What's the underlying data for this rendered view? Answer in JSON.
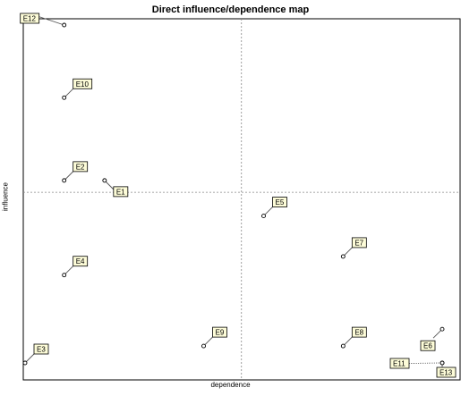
{
  "chart_data": {
    "type": "scatter",
    "title": "Direct influence/dependence map",
    "xlabel": "dependence",
    "ylabel": "influence",
    "grid": false,
    "points": [
      {
        "label": "E12",
        "x": 1.5,
        "y": 10.0,
        "lx": -3,
        "ly": 1
      },
      {
        "label": "E10",
        "x": 1.5,
        "y": 7.85,
        "lx": 1,
        "ly": 1
      },
      {
        "label": "E2",
        "x": 1.5,
        "y": 5.4,
        "lx": 1,
        "ly": 1
      },
      {
        "label": "E1",
        "x": 3.05,
        "y": 5.4,
        "lx": 1,
        "ly": -1
      },
      {
        "label": "E4",
        "x": 1.5,
        "y": 2.6,
        "lx": 1,
        "ly": 1
      },
      {
        "label": "E3",
        "x": 0.0,
        "y": 0.0,
        "lx": 1,
        "ly": 1
      },
      {
        "label": "E9",
        "x": 6.85,
        "y": 0.5,
        "lx": 1,
        "ly": 1
      },
      {
        "label": "E5",
        "x": 9.15,
        "y": 4.35,
        "lx": 1,
        "ly": 1
      },
      {
        "label": "E7",
        "x": 12.2,
        "y": 3.15,
        "lx": 1,
        "ly": 1
      },
      {
        "label": "E8",
        "x": 12.2,
        "y": 0.5,
        "lx": 1,
        "ly": 1
      },
      {
        "label": "E6",
        "x": 16.0,
        "y": 1.0,
        "lx": -1,
        "ly": -1
      },
      {
        "label": "E11",
        "x": 16.0,
        "y": 0.0,
        "lx": -2,
        "ly": 0
      },
      {
        "label": "E13",
        "x": 16.0,
        "y": 0.0,
        "lx": 0,
        "ly": -1
      }
    ],
    "xlim": [
      0,
      16.6
    ],
    "ylim": [
      0,
      10.2
    ],
    "x_divider": 8.3,
    "y_divider": 5.05,
    "colors": {
      "label_fill": "#fdfcd8",
      "label_border": "#000000",
      "marker": "#000000",
      "axis": "#000000",
      "divider": "#888888"
    }
  }
}
